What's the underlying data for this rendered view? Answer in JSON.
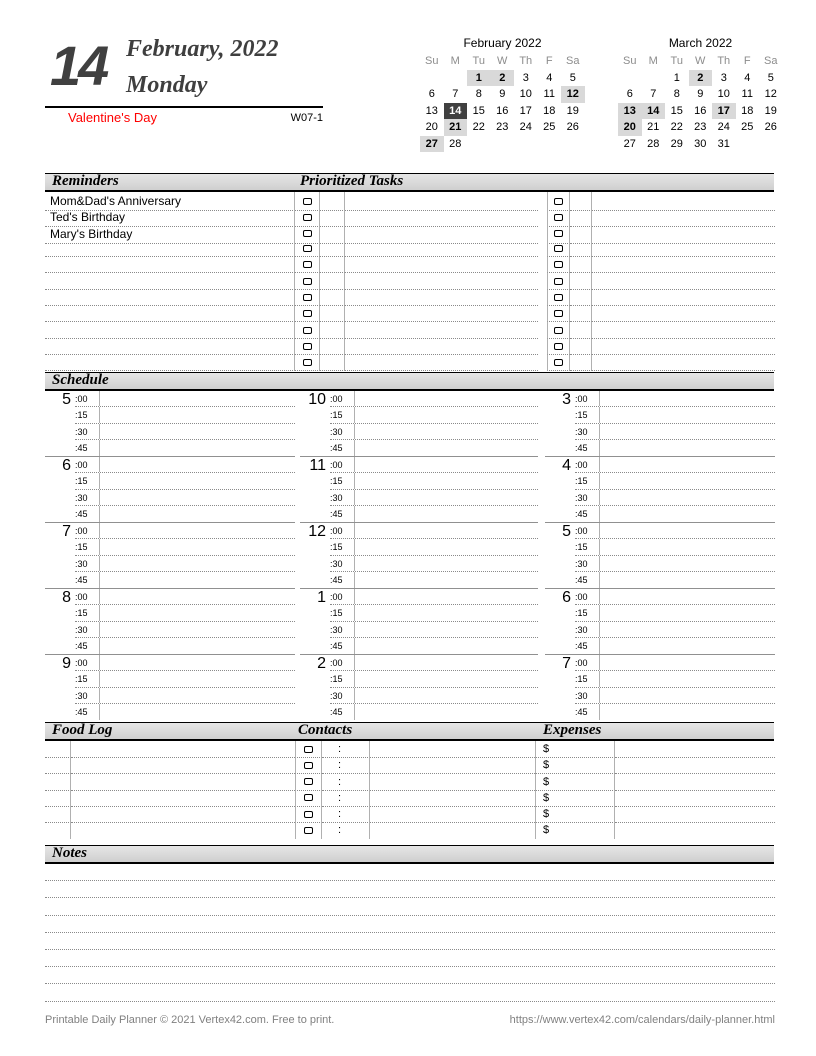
{
  "header": {
    "day_number": "14",
    "month_year": "February, 2022",
    "weekday": "Monday",
    "holiday": "Valentine's Day",
    "week_label": "W07-1",
    "accent_color": "#404040",
    "holiday_color": "#ff0000"
  },
  "mini_calendars": [
    {
      "title": "February 2022",
      "day_headers": [
        "Su",
        "M",
        "Tu",
        "W",
        "Th",
        "F",
        "Sa"
      ],
      "weeks": [
        [
          "",
          "",
          "1",
          "2",
          "3",
          "4",
          "5"
        ],
        [
          "6",
          "7",
          "8",
          "9",
          "10",
          "11",
          "12"
        ],
        [
          "13",
          "14",
          "15",
          "16",
          "17",
          "18",
          "19"
        ],
        [
          "20",
          "21",
          "22",
          "23",
          "24",
          "25",
          "26"
        ],
        [
          "27",
          "28",
          "",
          "",
          "",
          "",
          ""
        ]
      ],
      "highlighted_days": [
        "1",
        "2",
        "12",
        "21",
        "27"
      ],
      "selected_days": [
        "14"
      ]
    },
    {
      "title": "March 2022",
      "day_headers": [
        "Su",
        "M",
        "Tu",
        "W",
        "Th",
        "F",
        "Sa"
      ],
      "weeks": [
        [
          "",
          "",
          "1",
          "2",
          "3",
          "4",
          "5"
        ],
        [
          "6",
          "7",
          "8",
          "9",
          "10",
          "11",
          "12"
        ],
        [
          "13",
          "14",
          "15",
          "16",
          "17",
          "18",
          "19"
        ],
        [
          "20",
          "21",
          "22",
          "23",
          "24",
          "25",
          "26"
        ],
        [
          "27",
          "28",
          "29",
          "30",
          "31",
          "",
          ""
        ]
      ],
      "highlighted_days": [
        "2",
        "13",
        "14",
        "17",
        "20"
      ],
      "selected_days": []
    }
  ],
  "sections": {
    "reminders": {
      "title": "Reminders",
      "items": [
        "Mom&Dad's Anniversary",
        "Ted's Birthday",
        "Mary's Birthday"
      ],
      "row_count": 11
    },
    "tasks": {
      "title": "Prioritized Tasks",
      "row_count": 11
    },
    "schedule": {
      "title": "Schedule",
      "hour_columns": [
        [
          "5",
          "6",
          "7",
          "8",
          "9"
        ],
        [
          "10",
          "11",
          "12",
          "1",
          "2"
        ],
        [
          "3",
          "4",
          "5",
          "6",
          "7"
        ]
      ],
      "quarter_labels": [
        ":00",
        ":15",
        ":30",
        ":45"
      ]
    },
    "food_log": {
      "title": "Food Log",
      "row_count": 6
    },
    "contacts": {
      "title": "Contacts",
      "row_count": 6,
      "separator": ":"
    },
    "expenses": {
      "title": "Expenses",
      "row_count": 6,
      "currency_symbol": "$"
    },
    "notes": {
      "title": "Notes",
      "line_count": 8
    }
  },
  "footer": {
    "credit": "Printable Daily Planner © 2021 Vertex42.com. Free to print.",
    "url": "https://www.vertex42.com/calendars/daily-planner.html"
  },
  "colors": {
    "band_fill": "#d9d9d9",
    "selected_day_fill": "#404040",
    "highlight_day_fill": "#d9d9d9",
    "dotted_line": "#8a8a8a",
    "footer_text": "#808080"
  }
}
